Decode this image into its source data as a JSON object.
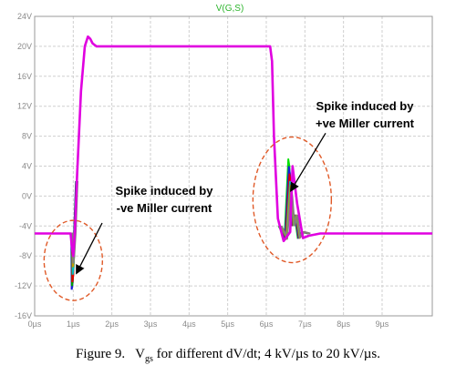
{
  "chart_data": {
    "type": "line",
    "title": "V(G,S)",
    "x_ticks": [
      "0µs",
      "1µs",
      "2µs",
      "3µs",
      "4µs",
      "5µs",
      "6µs",
      "7µs",
      "8µs",
      "9µs"
    ],
    "x_range_us": [
      0,
      10.3
    ],
    "y_ticks": [
      "24V",
      "20V",
      "16V",
      "12V",
      "8V",
      "4V",
      "0V",
      "-4V",
      "-8V",
      "-12V",
      "-16V"
    ],
    "ylim": [
      -16,
      24
    ],
    "grid": true,
    "main_series": {
      "name": "V(G,S)",
      "color": "#e000e0",
      "x_us": [
        0,
        0.93,
        0.96,
        1.0,
        1.04,
        1.1,
        1.2,
        1.3,
        1.38,
        1.44,
        1.5,
        1.6,
        1.8,
        2.2,
        6.1,
        6.15,
        6.2,
        6.3,
        6.45,
        6.62,
        6.68,
        6.8,
        6.95,
        7.1,
        7.4,
        8.0,
        10.3
      ],
      "y_v": [
        -5,
        -5,
        -6.5,
        -8,
        -5,
        3,
        14,
        20,
        21.3,
        21,
        20.4,
        20,
        20,
        20,
        20,
        18,
        8,
        -3,
        -6,
        -4.8,
        4,
        -1,
        -5.6,
        -5.3,
        -5,
        -5,
        -5
      ]
    },
    "negative_spike": {
      "x_us": 1.0,
      "series": [
        {
          "color": "#1a1adc",
          "min": -12.5
        },
        {
          "color": "#00a000",
          "min": -12
        },
        {
          "color": "#e00000",
          "min": -11.5
        },
        {
          "color": "#00c0c0",
          "min": -10.5
        },
        {
          "color": "#c0a000",
          "min": -9.5
        },
        {
          "color": "#808080",
          "min": -9
        }
      ]
    },
    "positive_spike": {
      "x_us": 6.67,
      "series": [
        {
          "color": "#00e000",
          "max": 5
        },
        {
          "color": "#1a1adc",
          "max": 4
        },
        {
          "color": "#e00000",
          "max": 3
        },
        {
          "color": "#00c0c0",
          "max": 2
        },
        {
          "color": "#c0a000",
          "max": 1.5
        },
        {
          "color": "#808080",
          "max": 1
        }
      ]
    },
    "annotations": [
      {
        "line1": "Spike induced by",
        "line2": "+ve Miller current",
        "target": "positive-spike"
      },
      {
        "line1": "Spike induced by",
        "line2": "-ve Miller current",
        "target": "negative-spike"
      }
    ],
    "highlight_color": "#e05a28"
  },
  "caption": "Figure 9.   Vgs for different dV/dt; 4 kV/µs to 20 kV/µs."
}
